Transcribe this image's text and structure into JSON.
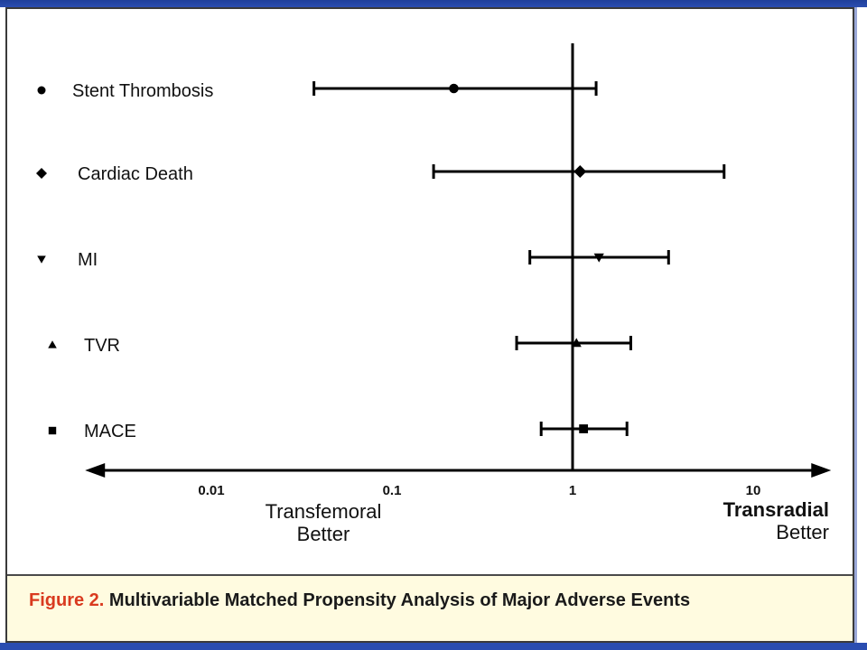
{
  "chart_data": {
    "type": "forest",
    "x_scale": "log",
    "x_axis_range": [
      0.002,
      27
    ],
    "reference_line": 1,
    "xticks": [
      {
        "value": 0.01,
        "label": "0.01"
      },
      {
        "value": 0.1,
        "label": "0.1"
      },
      {
        "value": 1,
        "label": "1"
      },
      {
        "value": 10,
        "label": "10"
      }
    ],
    "left_axis_label": [
      "Transfemoral",
      "Better"
    ],
    "right_axis_label": [
      "Transradial",
      "Better"
    ],
    "rows": [
      {
        "label": "Stent Thrombosis",
        "marker": "circle",
        "estimate": 0.22,
        "lower": 0.037,
        "upper": 1.35
      },
      {
        "label": "Cardiac Death",
        "marker": "diamond",
        "estimate": 1.1,
        "lower": 0.17,
        "upper": 6.9
      },
      {
        "label": "MI",
        "marker": "triangle-down",
        "estimate": 1.4,
        "lower": 0.58,
        "upper": 3.4
      },
      {
        "label": "TVR",
        "marker": "triangle-up",
        "estimate": 1.05,
        "lower": 0.49,
        "upper": 2.1
      },
      {
        "label": "MACE",
        "marker": "square",
        "estimate": 1.15,
        "lower": 0.67,
        "upper": 2.0
      }
    ]
  },
  "caption": {
    "label": "Figure 2.",
    "text": " Multivariable Matched Propensity Analysis of Major Adverse Events"
  }
}
